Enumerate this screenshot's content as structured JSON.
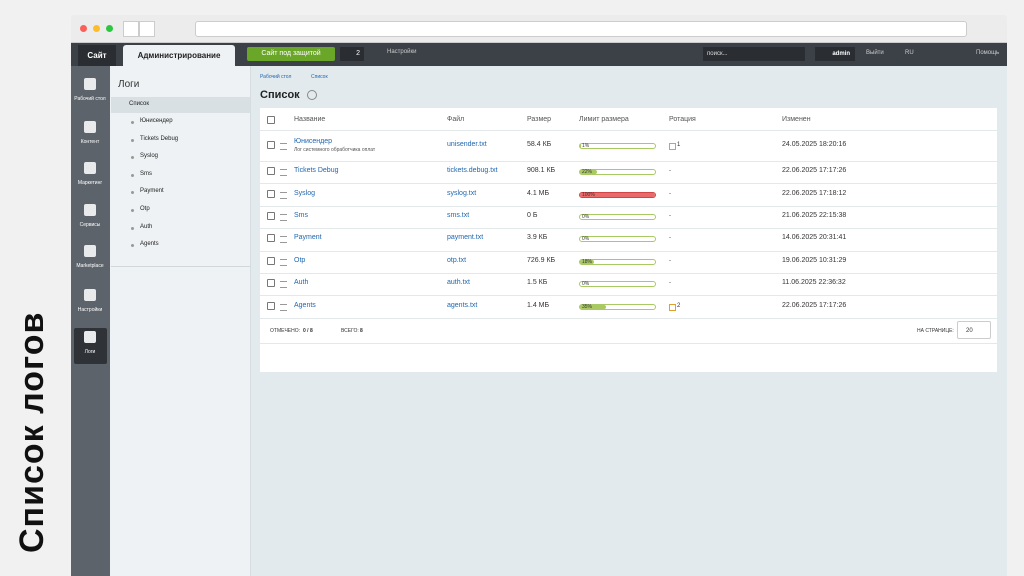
{
  "caption": "Список логов",
  "topbar": {
    "site": "Сайт",
    "admin": "Администрирование",
    "protected": "Сайт под защитой",
    "badge": "2",
    "settings": "Настройки",
    "search": "поиск...",
    "user": "admin",
    "logout": "Выйти",
    "lang": "RU",
    "help": "Помощь"
  },
  "sidebar": [
    "Рабочий стол",
    "Контент",
    "Маркетинг",
    "Сервисы",
    "Marketplace",
    "Настройки",
    "Логи"
  ],
  "menu": {
    "title": "Логи",
    "current": "Список",
    "items": [
      "Юнисендер",
      "Tickets Debug",
      "Syslog",
      "Sms",
      "Payment",
      "Otp",
      "Auth",
      "Agents"
    ]
  },
  "breadcrumb": [
    "Рабочий стол",
    "Список"
  ],
  "heading": "Список",
  "table": {
    "columns": [
      "Название",
      "Файл",
      "Размер",
      "Лимит размера",
      "Ротация",
      "Изменен"
    ],
    "rows": [
      {
        "name": "Юнисендер",
        "description": "Лог системного обработчика оплат",
        "file": "unisender.txt",
        "size": "58.4 КБ",
        "limit": 1,
        "limit_label": "1%",
        "rotation": "1",
        "modified": "24.05.2025 18:20:16"
      },
      {
        "name": "Tickets Debug",
        "file": "tickets.debug.txt",
        "size": "908.1 КБ",
        "limit": 22,
        "limit_label": "22%",
        "rotation": "-",
        "modified": "22.06.2025 17:17:26"
      },
      {
        "name": "Syslog",
        "file": "syslog.txt",
        "size": "4.1 МБ",
        "limit": 100,
        "limit_label": "100%",
        "rotation": "-",
        "modified": "22.06.2025 17:18:12"
      },
      {
        "name": "Sms",
        "file": "sms.txt",
        "size": "0 Б",
        "limit": 0,
        "limit_label": "0%",
        "rotation": "-",
        "modified": "21.06.2025 22:15:38"
      },
      {
        "name": "Payment",
        "file": "payment.txt",
        "size": "3.9 КБ",
        "limit": 0,
        "limit_label": "0%",
        "rotation": "-",
        "modified": "14.06.2025 20:31:41"
      },
      {
        "name": "Otp",
        "file": "otp.txt",
        "size": "726.9 КБ",
        "limit": 18,
        "limit_label": "18%",
        "rotation": "-",
        "modified": "19.06.2025 10:31:29"
      },
      {
        "name": "Auth",
        "file": "auth.txt",
        "size": "1.5 КБ",
        "limit": 0,
        "limit_label": "0%",
        "rotation": "-",
        "modified": "11.06.2025 22:36:32"
      },
      {
        "name": "Agents",
        "file": "agents.txt",
        "size": "1.4 МБ",
        "limit": 35,
        "limit_label": "35%",
        "rotation": "2",
        "modified": "22.06.2025 17:17:26"
      }
    ]
  },
  "footer": {
    "selected_label": "ОТМЕЧЕНО:",
    "selected_value": "0 / 8",
    "total_label": "ВСЕГО:",
    "total_value": "8",
    "per_page_label": "НА СТРАНИЦЕ:",
    "per_page": "20"
  }
}
